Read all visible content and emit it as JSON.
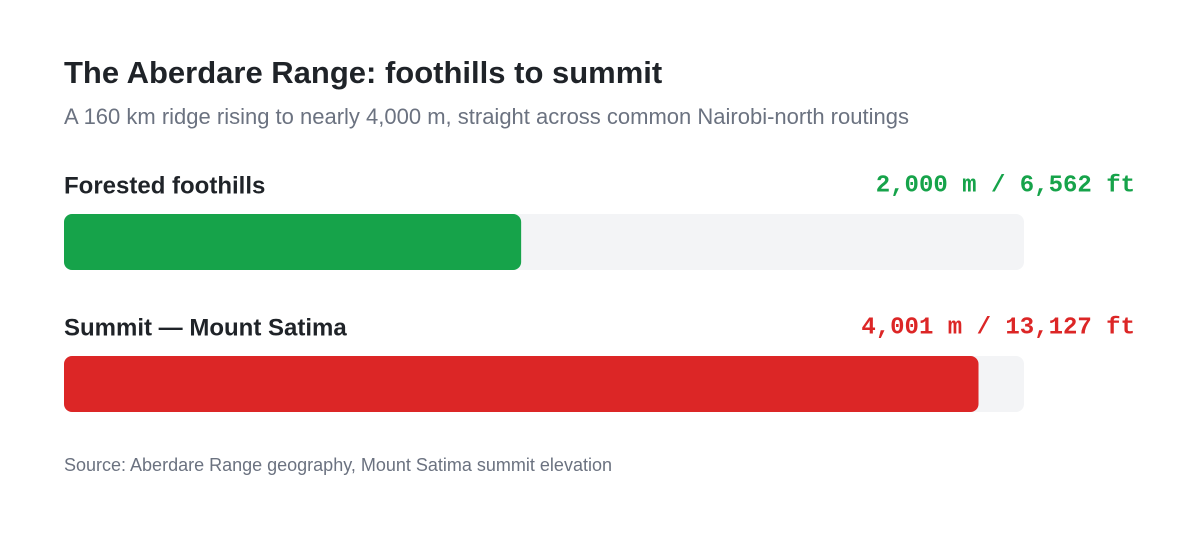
{
  "chart_data": {
    "type": "bar",
    "orientation": "horizontal",
    "title": "The Aberdare Range: foothills to summit",
    "subtitle": "A 160 km ridge rising to nearly 4,000 m, straight across common Nairobi-north routings",
    "categories": [
      "Forested foothills",
      "Summit — Mount Satima"
    ],
    "values": [
      2000,
      4001
    ],
    "value_labels": [
      "2,000 m / 6,562 ft",
      "4,001 m / 13,127 ft"
    ],
    "colors": [
      "#16a34a",
      "#dc2626"
    ],
    "xlim": [
      0,
      4200
    ],
    "source": "Source: Aberdare Range geography, Mount Satima summit elevation"
  }
}
